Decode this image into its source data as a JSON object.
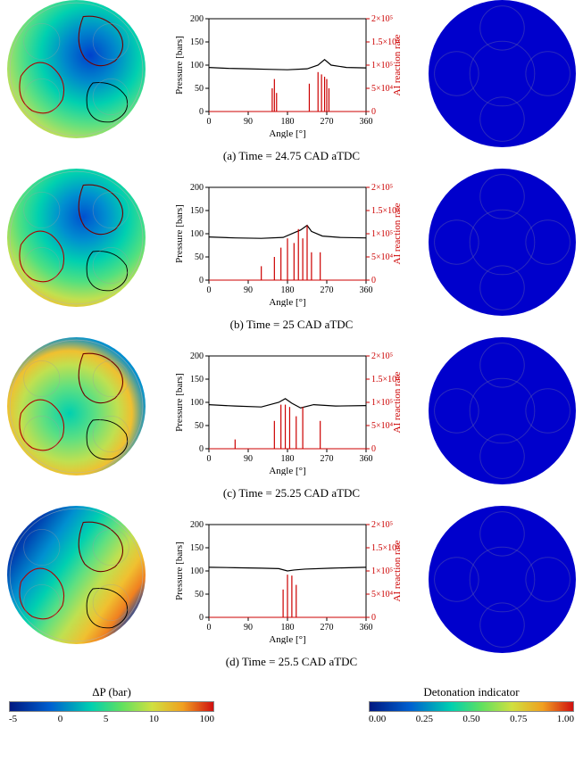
{
  "charts": [
    {
      "caption": "(a) Time = 24.75 CAD aTDC",
      "xlabel": "Angle [°]",
      "ylabel_left": "Pressure [bars]",
      "ylabel_right": "AI reaction rate",
      "xlim": [
        0,
        360
      ],
      "xticks": [
        0,
        90,
        180,
        270,
        360
      ],
      "ylim_left": [
        0,
        200
      ],
      "yticks_left": [
        0,
        50,
        100,
        150,
        200
      ],
      "ylim_right": [
        0,
        200000.0
      ],
      "yticks_right": [
        "0",
        "5×10⁴",
        "1×10⁵",
        "1.5×10⁵",
        "2×10⁵"
      ],
      "pressure_line": [
        [
          0,
          95
        ],
        [
          45,
          93
        ],
        [
          90,
          92
        ],
        [
          135,
          91
        ],
        [
          180,
          90
        ],
        [
          225,
          92
        ],
        [
          250,
          100
        ],
        [
          265,
          112
        ],
        [
          280,
          100
        ],
        [
          315,
          95
        ],
        [
          360,
          94
        ]
      ],
      "ai_spikes": [
        [
          145,
          50000
        ],
        [
          150,
          70000
        ],
        [
          155,
          40000
        ],
        [
          230,
          60000
        ],
        [
          250,
          85000
        ],
        [
          258,
          80000
        ],
        [
          265,
          75000
        ],
        [
          270,
          70000
        ],
        [
          275,
          50000
        ]
      ],
      "left_gradient": "radial-gradient(circle at 60% 40%, #0040cc 0%, #0088cc 22%, #00d0b0 42%, #60e080 60%, #b0e060 72%, #e0d040 82%, #00a0c0 100%)",
      "det_color": "#0000cc"
    },
    {
      "caption": "(b) Time = 25 CAD aTDC",
      "xlabel": "Angle [°]",
      "ylabel_left": "Pressure [bars]",
      "ylabel_right": "AI reaction rate",
      "xlim": [
        0,
        360
      ],
      "xticks": [
        0,
        90,
        180,
        270,
        360
      ],
      "ylim_left": [
        0,
        200
      ],
      "yticks_left": [
        0,
        50,
        100,
        150,
        200
      ],
      "ylim_right": [
        0,
        200000.0
      ],
      "yticks_right": [
        "0",
        "5×10⁴",
        "1×10⁵",
        "1.5×10⁵",
        "2×10⁵"
      ],
      "pressure_line": [
        [
          0,
          93
        ],
        [
          60,
          91
        ],
        [
          120,
          90
        ],
        [
          170,
          92
        ],
        [
          195,
          102
        ],
        [
          210,
          108
        ],
        [
          225,
          118
        ],
        [
          235,
          105
        ],
        [
          260,
          95
        ],
        [
          300,
          92
        ],
        [
          360,
          91
        ]
      ],
      "ai_spikes": [
        [
          120,
          30000
        ],
        [
          150,
          50000
        ],
        [
          165,
          70000
        ],
        [
          180,
          90000
        ],
        [
          195,
          80000
        ],
        [
          205,
          110000
        ],
        [
          215,
          90000
        ],
        [
          225,
          118000
        ],
        [
          235,
          60000
        ],
        [
          255,
          60000
        ]
      ],
      "left_gradient": "radial-gradient(circle at 55% 35%, #0050d0 0%, #0090d0 20%, #00d0b0 38%, #50e080 55%, #c0e050 70%, #f0c030 80%, #e08020 88%, #0080c0 100%)",
      "det_color": "#0000cc"
    },
    {
      "caption": "(c) Time = 25.25 CAD aTDC",
      "xlabel": "Angle [°]",
      "ylabel_left": "Pressure [bars]",
      "ylabel_right": "AI reaction rate",
      "xlim": [
        0,
        360
      ],
      "xticks": [
        0,
        90,
        180,
        270,
        360
      ],
      "ylim_left": [
        0,
        200
      ],
      "yticks_left": [
        0,
        50,
        100,
        150,
        200
      ],
      "ylim_right": [
        0,
        200000.0
      ],
      "yticks_right": [
        "0",
        "5×10⁴",
        "1×10⁵",
        "1.5×10⁵",
        "2×10⁵"
      ],
      "pressure_line": [
        [
          0,
          95
        ],
        [
          60,
          92
        ],
        [
          120,
          90
        ],
        [
          160,
          100
        ],
        [
          175,
          108
        ],
        [
          190,
          98
        ],
        [
          210,
          88
        ],
        [
          240,
          95
        ],
        [
          290,
          92
        ],
        [
          360,
          93
        ]
      ],
      "ai_spikes": [
        [
          60,
          20000
        ],
        [
          150,
          60000
        ],
        [
          165,
          95000
        ],
        [
          175,
          95000
        ],
        [
          185,
          90000
        ],
        [
          200,
          70000
        ],
        [
          215,
          90000
        ],
        [
          255,
          60000
        ]
      ],
      "left_gradient": "radial-gradient(ellipse at 45% 55%, #00d0b0 0%, #60e080 25%, #c0e050 45%, #f0c030 58%, #0090d0 72%, #0040b0 88%, #001880 100%)",
      "det_color": "#0000cc"
    },
    {
      "caption": "(d) Time = 25.5 CAD aTDC",
      "xlabel": "Angle [°]",
      "ylabel_left": "Pressure [bars]",
      "ylabel_right": "AI reaction rate",
      "xlim": [
        0,
        360
      ],
      "xticks": [
        0,
        90,
        180,
        270,
        360
      ],
      "ylim_left": [
        0,
        200
      ],
      "yticks_left": [
        0,
        50,
        100,
        150,
        200
      ],
      "ylim_right": [
        0,
        200000.0
      ],
      "yticks_right": [
        "0",
        "5×10⁴",
        "1×10⁵",
        "1.5×10⁵",
        "2×10⁵"
      ],
      "pressure_line": [
        [
          0,
          108
        ],
        [
          60,
          107
        ],
        [
          120,
          106
        ],
        [
          160,
          105
        ],
        [
          180,
          100
        ],
        [
          195,
          102
        ],
        [
          220,
          104
        ],
        [
          280,
          106
        ],
        [
          360,
          108
        ]
      ],
      "ai_spikes": [
        [
          170,
          60000
        ],
        [
          180,
          92000
        ],
        [
          190,
          90000
        ],
        [
          200,
          70000
        ]
      ],
      "left_gradient": "linear-gradient(125deg, #001880 0%, #0040b0 18%, #0090d0 30%, #00d0b0 42%, #60e080 52%, #c0e050 62%, #f0c030 72%, #f08020 80%, #0040b0 88%, #001880 100%)",
      "det_color": "#0000cc"
    }
  ],
  "colorbar_dp": {
    "title": "ΔP (bar)",
    "ticks": [
      "-5",
      "0",
      "5",
      "10",
      "100"
    ],
    "gradient": "linear-gradient(90deg, #001880 0%, #0060d0 20%, #00d0b0 40%, #60e060 55%, #d0e040 70%, #f0a020 85%, #d01010 100%)"
  },
  "colorbar_di": {
    "title": "Detonation indicator",
    "ticks": [
      "0.00",
      "0.25",
      "0.50",
      "0.75",
      "1.00"
    ],
    "gradient": "linear-gradient(90deg, #001880 0%, #0060d0 20%, #00d0b0 40%, #60e060 55%, #d0e040 70%, #f0a020 85%, #d01010 100%)"
  },
  "chart_style": {
    "pressure_color": "#000000",
    "ai_color": "#cc0000",
    "grid_color": "#000000",
    "line_width": 1.2
  }
}
